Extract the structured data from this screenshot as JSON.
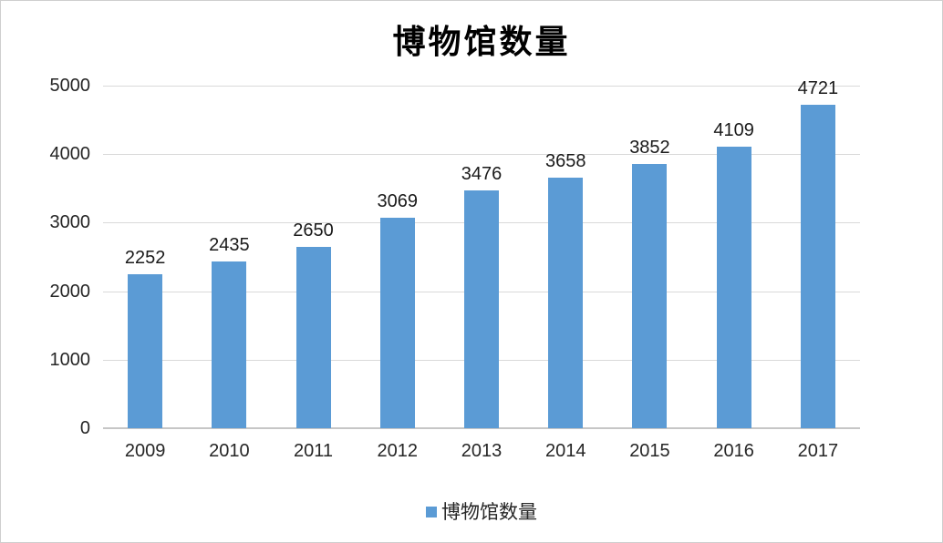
{
  "chart_data": {
    "type": "bar",
    "title": "博物馆数量",
    "categories": [
      "2009",
      "2010",
      "2011",
      "2012",
      "2013",
      "2014",
      "2015",
      "2016",
      "2017"
    ],
    "values": [
      2252,
      2435,
      2650,
      3069,
      3476,
      3658,
      3852,
      4109,
      4721
    ],
    "data_labels": [
      "2252",
      "2435",
      "2650",
      "3069",
      "3476",
      "3658",
      "3852",
      "4109",
      "4721"
    ],
    "xlabel": "",
    "ylabel": "",
    "ylim": [
      0,
      5000
    ],
    "y_ticks": [
      "0",
      "1000",
      "2000",
      "3000",
      "4000",
      "5000"
    ],
    "grid": "horizontal",
    "legend": [
      "博物馆数量"
    ],
    "legend_position": "bottom"
  },
  "colors": {
    "bar": "#5B9BD5",
    "gridline": "#d9d9d9",
    "axis_line": "#c6c6c6",
    "label": "#262626",
    "title": "#000000",
    "border": "#cfcfcf",
    "background": "#ffffff"
  }
}
